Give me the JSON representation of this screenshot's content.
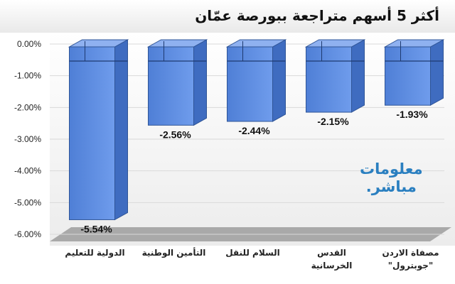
{
  "chart_data": {
    "type": "bar",
    "title": "أكثر 5 أسهم متراجعة ببورصة عمّان",
    "categories": [
      [
        "الدولية للتعليم"
      ],
      [
        "التأمين الوطنية"
      ],
      [
        "السلام للنقل"
      ],
      [
        "القدس",
        "الخرسانية"
      ],
      [
        "مصفاة الاردن",
        "\"جوبترول\""
      ]
    ],
    "values": [
      -5.54,
      -2.56,
      -2.44,
      -2.15,
      -1.93
    ],
    "data_labels": [
      "-5.54%",
      "-2.56%",
      "-2.44%",
      "-2.15%",
      "-1.93%"
    ],
    "ylim": [
      -6,
      0
    ],
    "y_ticks": [
      "0.00%",
      "-1.00%",
      "-2.00%",
      "-3.00%",
      "-4.00%",
      "-5.00%",
      "-6.00%"
    ],
    "xlabel": "",
    "ylabel": "",
    "grid": true,
    "bar_color": "#5b8be0"
  },
  "watermark": {
    "line1": "معلومات",
    "line2": "مباشر."
  }
}
